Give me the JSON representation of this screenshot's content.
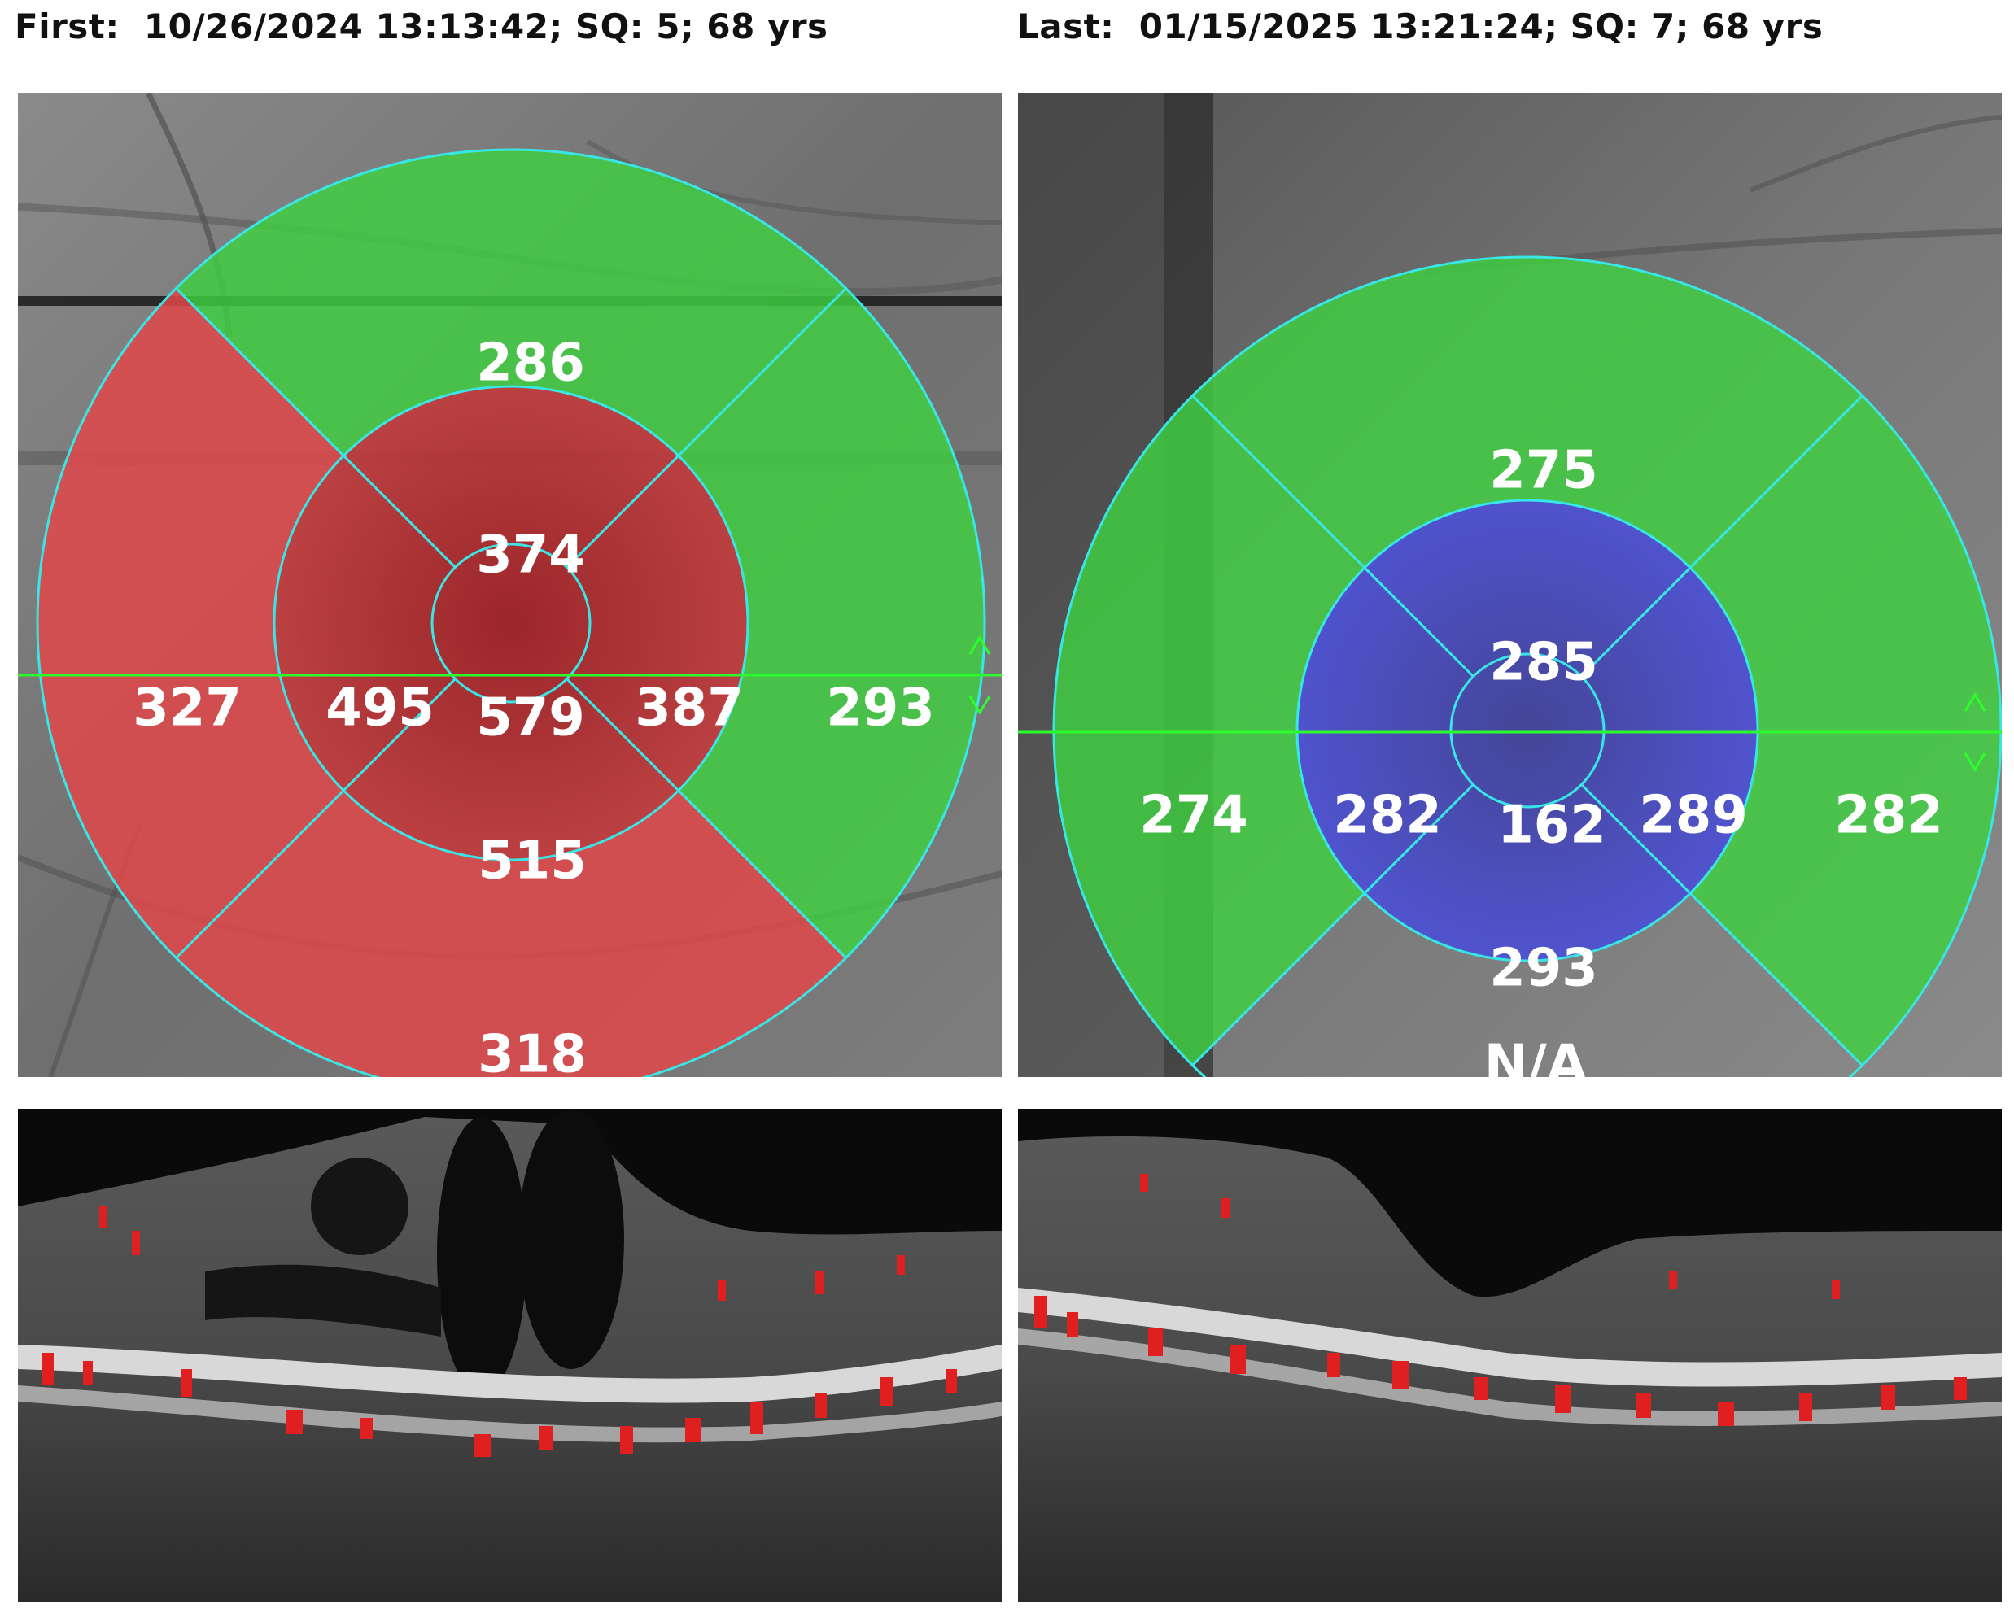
{
  "header": {
    "first": "First:  10/26/2024 13:13:42; SQ: 5; 68 yrs",
    "last": "Last:  01/15/2025 13:21:24; SQ: 7; 68 yrs"
  },
  "first_map": {
    "center": "579",
    "inner_superior": "374",
    "inner_inferior": "515",
    "inner_nasal": "495",
    "inner_temporal": "387",
    "outer_superior": "286",
    "outer_inferior": "318",
    "outer_nasal": "327",
    "outer_temporal": "293"
  },
  "last_map": {
    "center": "162",
    "inner_superior": "285",
    "inner_inferior": "293",
    "inner_nasal": "282",
    "inner_temporal": "289",
    "outer_superior": "275",
    "outer_nasal": "274",
    "outer_temporal": "282",
    "outer_inferior": "N/A"
  },
  "colors": {
    "thick_red": "#e0484a",
    "thick_red_dark": "#c0272d",
    "normal_green": "#3fd13f",
    "thin_blue": "#4b4fd6",
    "grid_line": "#39e6e6",
    "scan_line": "#2bff2b"
  },
  "icons": [
    "arrow-up-icon",
    "arrow-down-icon"
  ]
}
